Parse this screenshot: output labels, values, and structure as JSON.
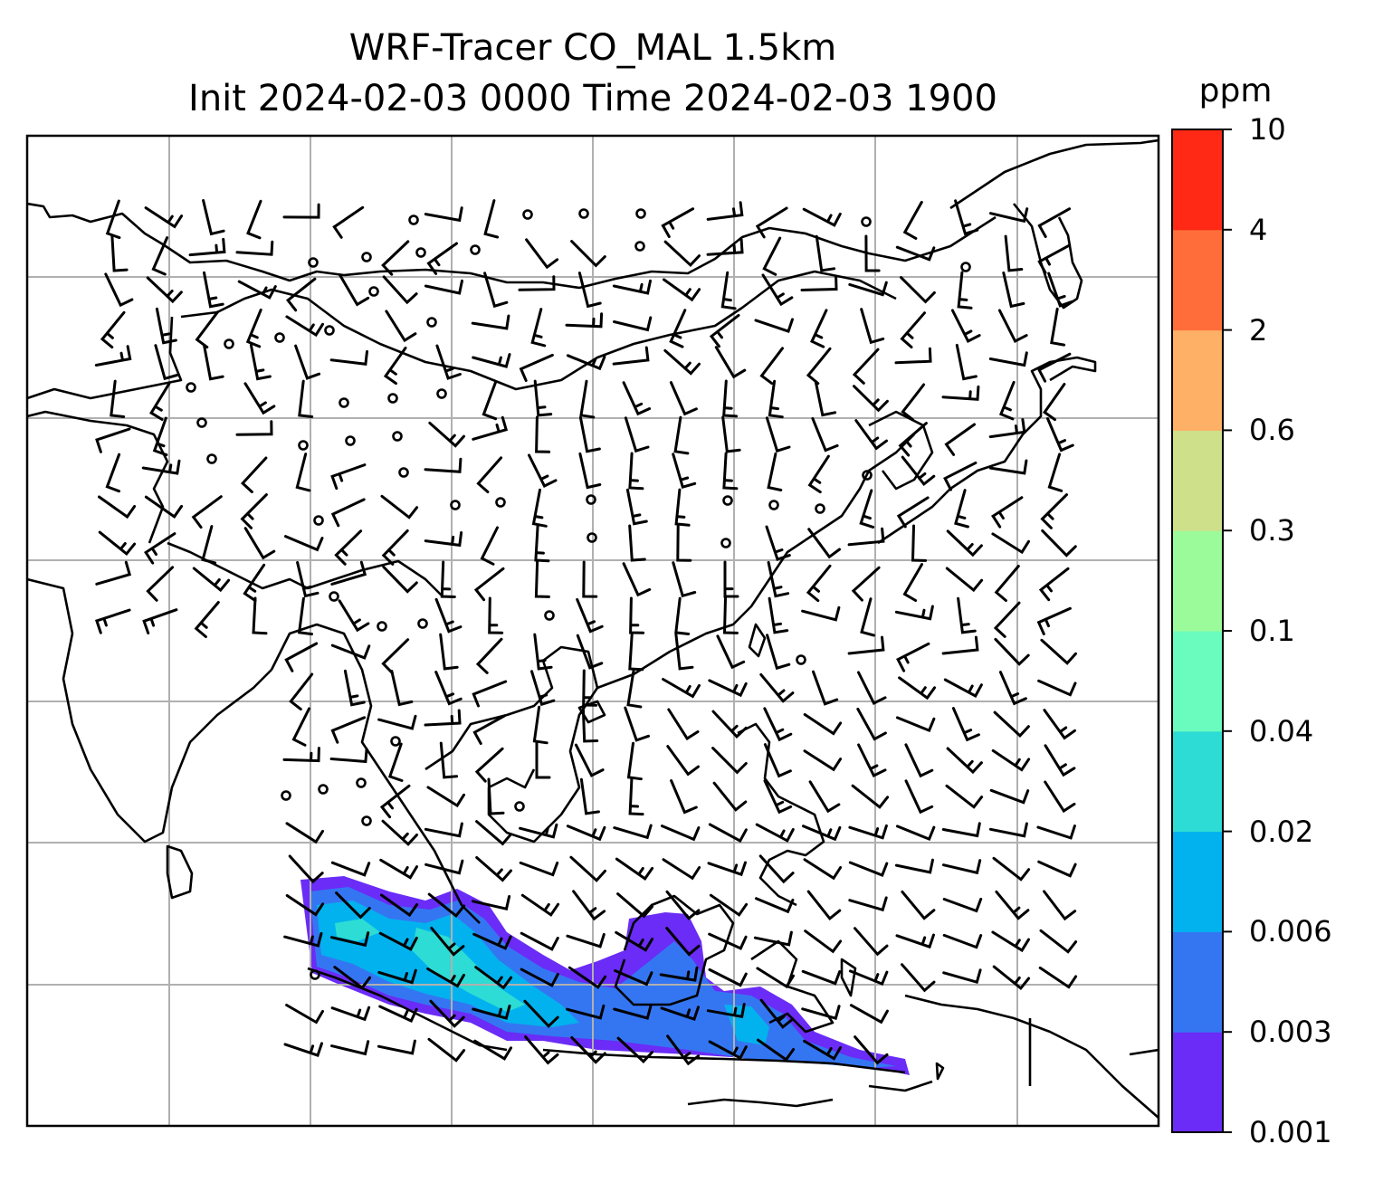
{
  "title": {
    "line1": "WRF-Tracer CO_MAL 1.5km",
    "line2": "Init 2024-02-03 0000 Time 2024-02-03 1900"
  },
  "colorbar": {
    "label": "ppm",
    "levels": [
      "0.001",
      "0.003",
      "0.006",
      "0.02",
      "0.04",
      "0.1",
      "0.3",
      "0.6",
      "2",
      "4",
      "10"
    ],
    "colors": [
      "#6a2cf6",
      "#3476f2",
      "#02b2ee",
      "#2ddcd4",
      "#6afcbe",
      "#9bfb9a",
      "#cfe08b",
      "#feb066",
      "#ff6e3a",
      "#ff2915"
    ]
  },
  "map": {
    "projection_grid": "lat/lon gridlines",
    "coastline_color": "#000000",
    "grid_color": "#b0b0b0",
    "features": [
      "coastlines",
      "country borders",
      "wind barbs",
      "calm circles",
      "CO_MAL tracer plume"
    ]
  },
  "chart_data": {
    "type": "heatmap",
    "title": "WRF-Tracer CO_MAL 1.5km",
    "subtitle": "Init 2024-02-03 0000 Time 2024-02-03 1900",
    "colorbar_units": "ppm",
    "colorbar_ticks": [
      0.001,
      0.003,
      0.006,
      0.02,
      0.04,
      0.1,
      0.3,
      0.6,
      2,
      4,
      10
    ],
    "plume_value_range_ppm": [
      0.001,
      0.04
    ],
    "grid": true
  }
}
